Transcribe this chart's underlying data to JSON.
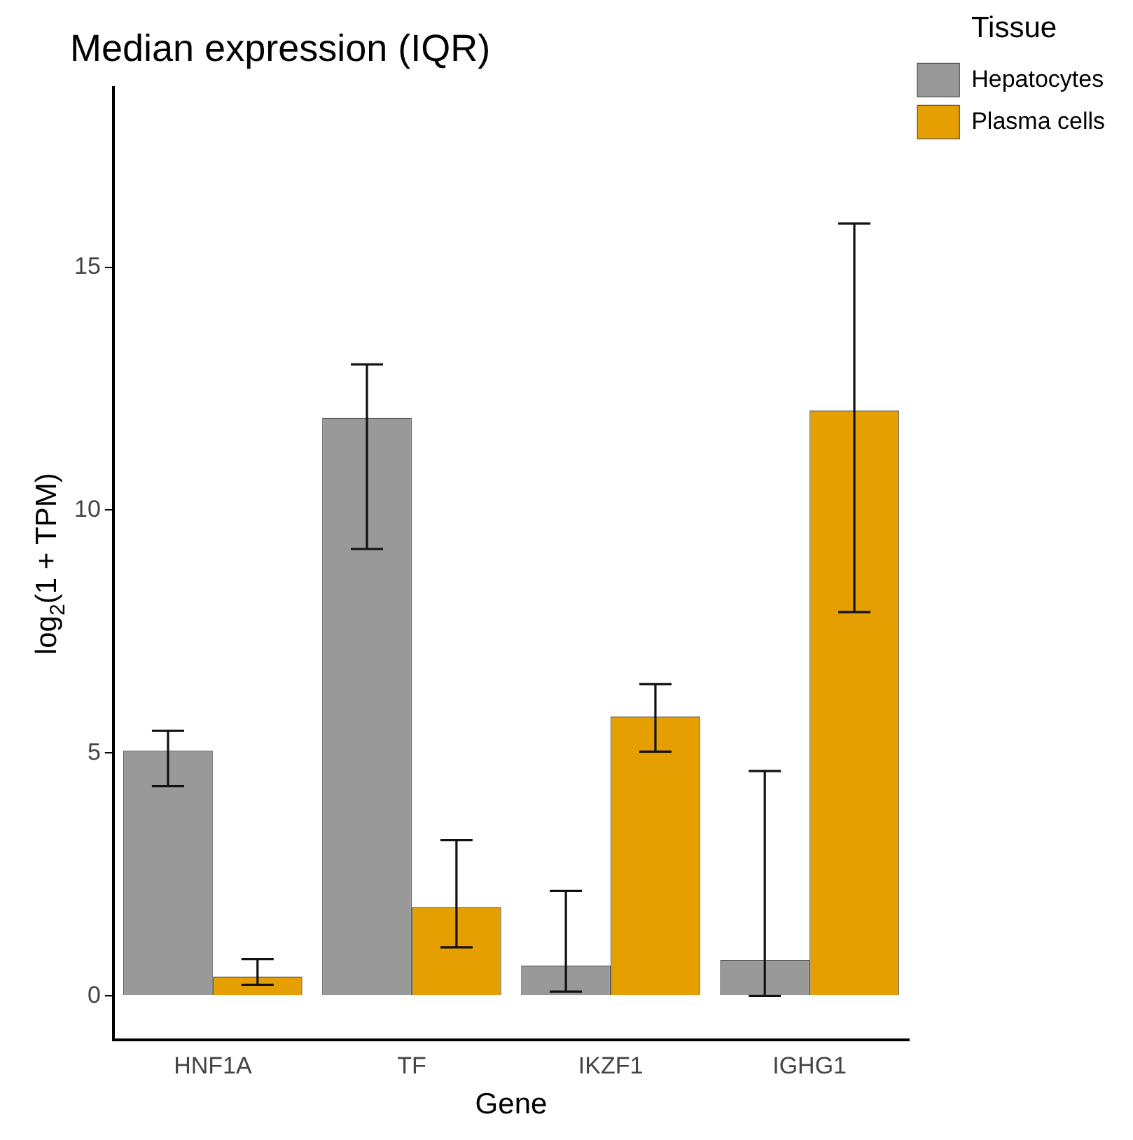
{
  "chart_data": {
    "type": "bar",
    "title": "Median expression (IQR)",
    "xlabel": "Gene",
    "ylabel": "log$_{2}$(1 + TPM)",
    "legend_title": "Tissue",
    "legend": "top right",
    "grid": false,
    "categories": [
      "HNF1A",
      "TF",
      "IKZF1",
      "IGHG1"
    ],
    "series": [
      {
        "name": "Hepatocytes",
        "color": "#999999",
        "values": [
          5.05,
          11.9,
          0.63,
          0.74
        ],
        "errors": [
          [
            4.32,
            5.46
          ],
          [
            9.2,
            13.0
          ],
          [
            0.09,
            2.16
          ],
          [
            0,
            4.63
          ]
        ]
      },
      {
        "name": "Plasma cells",
        "color": "#e69f00",
        "values": [
          0.4,
          1.83,
          5.75,
          12.05
        ],
        "errors": [
          [
            0.23,
            0.76
          ],
          [
            1.0,
            3.21
          ],
          [
            5.03,
            6.42
          ],
          [
            7.9,
            15.9
          ]
        ]
      }
    ],
    "ylim": [
      -0.9,
      18.7
    ],
    "yticks": [
      0,
      5,
      10,
      15
    ]
  }
}
